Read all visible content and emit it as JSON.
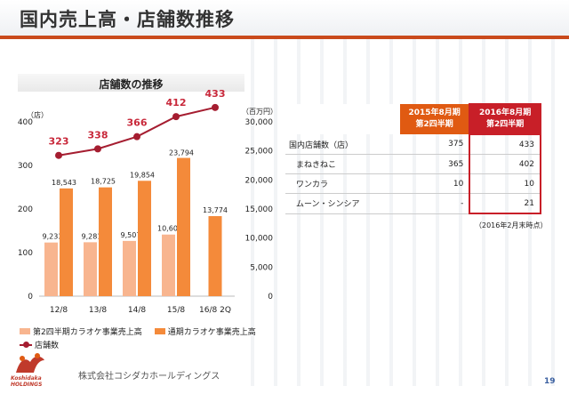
{
  "page": {
    "title": "国内売上高・店舗数推移",
    "company": "株式会社コシダカホールディングス",
    "logo_text": [
      "Koshidaka",
      "HOLDINGS"
    ],
    "page_number": "19"
  },
  "chart_data": {
    "type": "bar",
    "title": "店舗数の推移",
    "categories": [
      "12/8",
      "13/8",
      "14/8",
      "15/8",
      "16/8 2Q"
    ],
    "left_axis": {
      "unit": "（店）",
      "ticks": [
        "0",
        "100",
        "200",
        "300",
        "400"
      ],
      "range": [
        0,
        400
      ]
    },
    "right_axis": {
      "unit": "（百万円）",
      "ticks": [
        "0",
        "5,000",
        "10,000",
        "15,000",
        "20,000",
        "25,000",
        "30,000"
      ],
      "range": [
        0,
        30000
      ]
    },
    "series": [
      {
        "name": "第2四半期カラオケ事業売上高",
        "kind": "bar",
        "axis": "right",
        "color": "#f8b58f",
        "values": [
          9233,
          9281,
          9507,
          10602,
          null
        ],
        "labels": [
          "9,233",
          "9,281",
          "9,507",
          "10,602",
          ""
        ]
      },
      {
        "name": "通期カラオケ事業売上高",
        "kind": "bar",
        "axis": "right",
        "color": "#f48a3a",
        "values": [
          18543,
          18725,
          19854,
          23794,
          13774
        ],
        "labels": [
          "18,543",
          "18,725",
          "19,854",
          "23,794",
          "13,774"
        ]
      },
      {
        "name": "店舗数",
        "kind": "line",
        "axis": "left",
        "color": "#a51d30",
        "values": [
          323,
          338,
          366,
          412,
          433
        ],
        "labels": [
          "323",
          "338",
          "366",
          "412",
          "433"
        ]
      }
    ]
  },
  "store_table": {
    "headers": [
      "",
      "2015年8月期\n第2四半期",
      "2016年8月期\n第2四半期"
    ],
    "rows": [
      {
        "label": "国内店舗数（店）",
        "v2015": "375",
        "v2016": "433",
        "indent": false
      },
      {
        "label": "まねきねこ",
        "v2015": "365",
        "v2016": "402",
        "indent": true
      },
      {
        "label": "ワンカラ",
        "v2015": "10",
        "v2016": "10",
        "indent": true
      },
      {
        "label": "ムーン・シンシア",
        "v2015": "-",
        "v2016": "21",
        "indent": true
      }
    ],
    "note": "（2016年2月末時点）"
  },
  "colors": {
    "accent": "#e05a12",
    "highlight": "#c81f28",
    "line": "#a51d30"
  }
}
